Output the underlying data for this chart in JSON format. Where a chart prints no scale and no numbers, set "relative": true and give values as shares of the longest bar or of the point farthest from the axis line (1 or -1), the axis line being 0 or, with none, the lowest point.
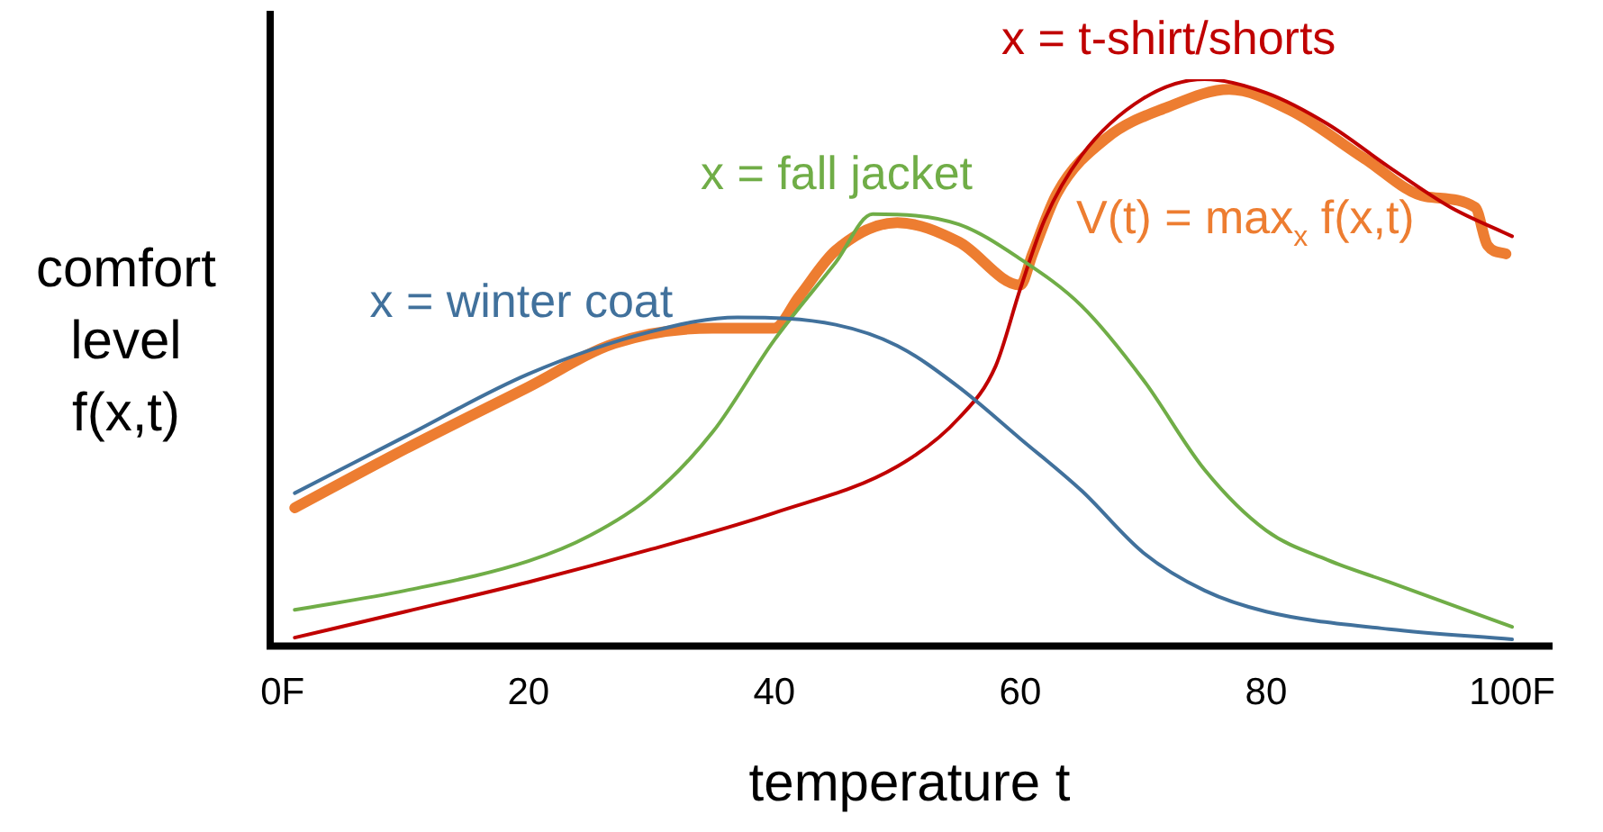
{
  "chart_data": {
    "type": "line",
    "relative": true,
    "xlabel": "temperature t",
    "ylabel": "comfort\nlevel\nf(x,t)",
    "xlim": [
      -1,
      103
    ],
    "xticks": [
      {
        "value": 0,
        "label": "0F"
      },
      20,
      40,
      60,
      80,
      {
        "value": 100,
        "label": "100F"
      }
    ],
    "grid": false,
    "legend": false,
    "marker": "none",
    "line_style": "solid",
    "series": [
      {
        "name": "x = winter coat",
        "color": "#41719c",
        "x": [
          1,
          10,
          20,
          30,
          37,
          45,
          50,
          55,
          60,
          65,
          70,
          75,
          80,
          90,
          100
        ],
        "values": [
          0.27,
          0.37,
          0.48,
          0.555,
          0.58,
          0.567,
          0.53,
          0.457,
          0.366,
          0.274,
          0.165,
          0.098,
          0.061,
          0.03,
          0.012
        ]
      },
      {
        "name": "x = fall jacket",
        "color": "#70ad47",
        "x": [
          1,
          10,
          20,
          25,
          30,
          35,
          40,
          45,
          48,
          55,
          60,
          65,
          70,
          75,
          80,
          85,
          90,
          100
        ],
        "values": [
          0.064,
          0.098,
          0.15,
          0.195,
          0.265,
          0.378,
          0.54,
          0.677,
          0.762,
          0.744,
          0.683,
          0.6,
          0.47,
          0.311,
          0.204,
          0.152,
          0.113,
          0.034
        ]
      },
      {
        "name": "x = t-shirt/shorts",
        "color": "#c00000",
        "x": [
          1,
          10,
          20,
          30,
          40,
          50,
          55,
          58,
          60,
          62,
          65,
          70,
          75,
          80,
          85,
          90,
          95,
          100
        ],
        "values": [
          0.015,
          0.061,
          0.113,
          0.171,
          0.235,
          0.317,
          0.402,
          0.494,
          0.63,
          0.753,
          0.866,
          0.966,
          1.0,
          0.976,
          0.921,
          0.845,
          0.774,
          0.723
        ]
      },
      {
        "name": "V(t) = max$_{x}$ f(x,t)",
        "color": "#ed7d31",
        "x": [
          1,
          10,
          20,
          27,
          35,
          40,
          42,
          45,
          50,
          55,
          60,
          61,
          63,
          67,
          72,
          77,
          82,
          88,
          93,
          97,
          98,
          99.5
        ],
        "values": [
          0.244,
          0.348,
          0.457,
          0.534,
          0.561,
          0.561,
          0.616,
          0.698,
          0.747,
          0.713,
          0.637,
          0.692,
          0.799,
          0.896,
          0.951,
          0.982,
          0.945,
          0.86,
          0.793,
          0.774,
          0.707,
          0.692
        ]
      }
    ]
  }
}
